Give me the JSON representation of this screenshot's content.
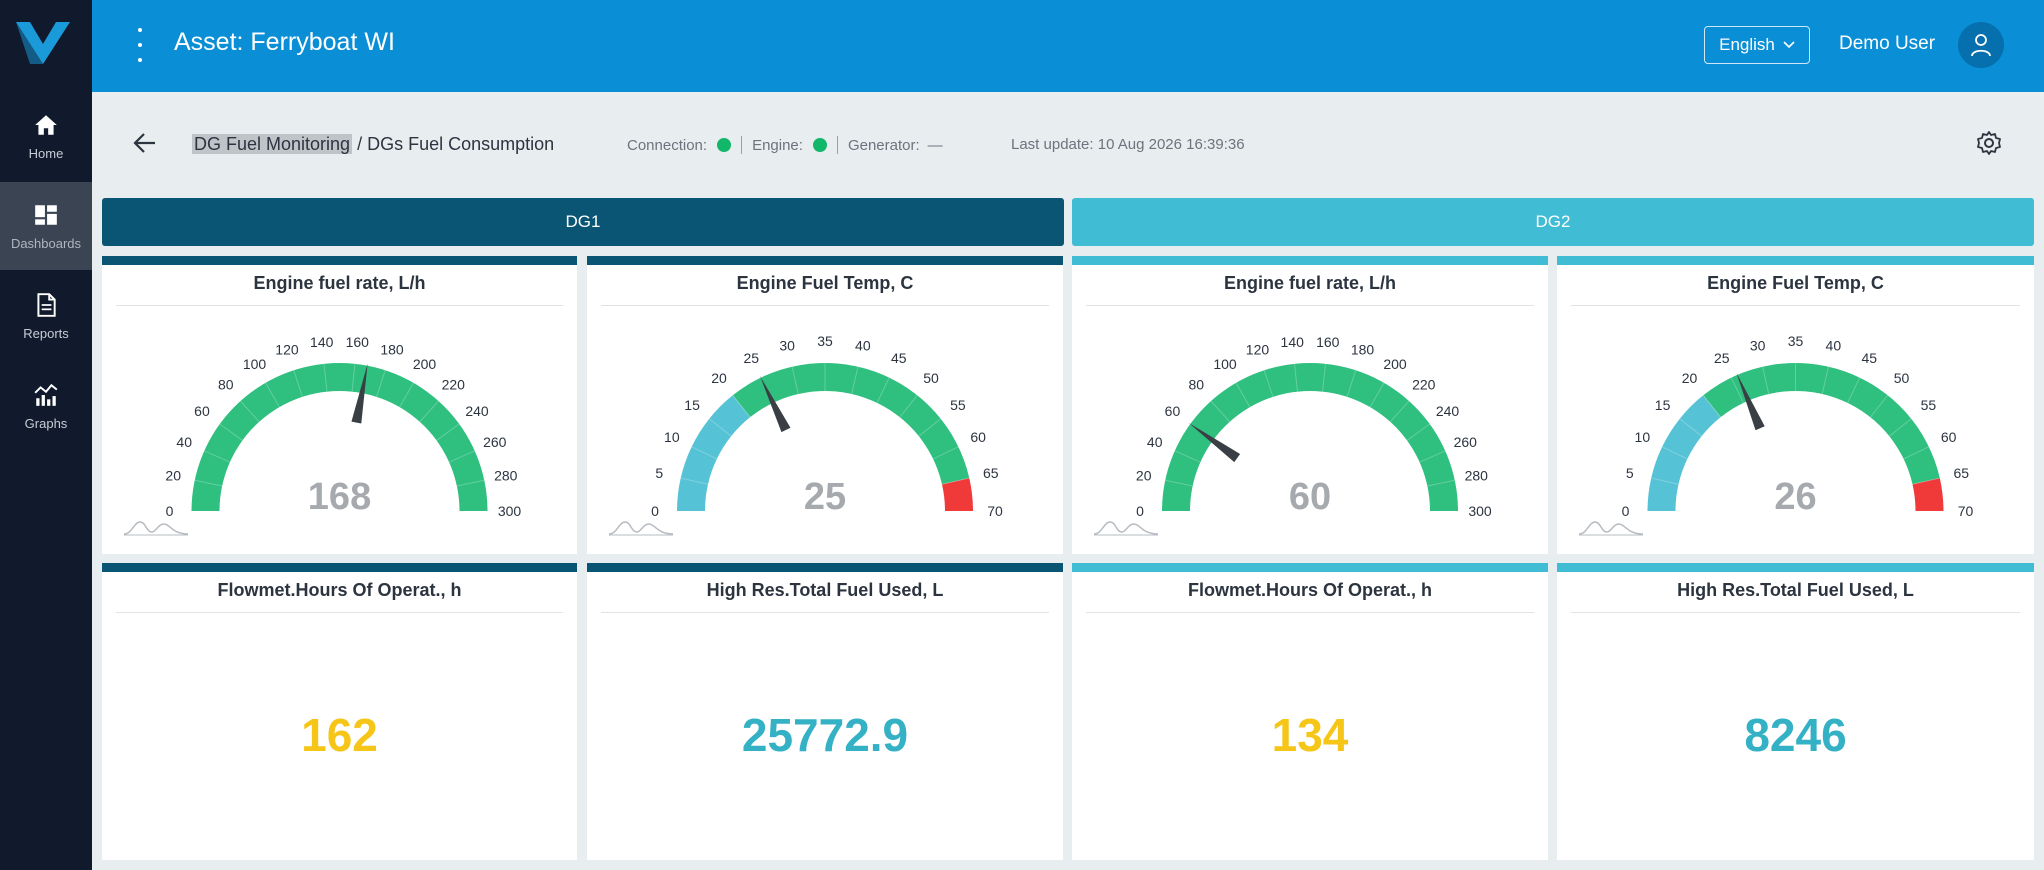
{
  "sidebar": {
    "items": [
      {
        "label": "Home",
        "icon": "home-icon"
      },
      {
        "label": "Dashboards",
        "icon": "dashboard-icon",
        "active": true
      },
      {
        "label": "Reports",
        "icon": "document-icon"
      },
      {
        "label": "Graphs",
        "icon": "graph-icon"
      }
    ]
  },
  "header": {
    "title": "Asset: Ferryboat WI",
    "language": "English",
    "user_name": "Demo User"
  },
  "breadcrumb": {
    "first": "DG Fuel Monitoring",
    "separator": " / ",
    "second": "DGs Fuel Consumption"
  },
  "status": {
    "connection_label": "Connection:",
    "engine_label": "Engine:",
    "generator_label": "Generator:",
    "generator_value": "—",
    "last_update": "Last update: 10 Aug 2026 16:39:36"
  },
  "tabs": [
    {
      "label": "DG1"
    },
    {
      "label": "DG2"
    }
  ],
  "gauges": [
    {
      "title": "Engine fuel rate, L/h",
      "value": 168,
      "display": "168",
      "min": 0,
      "max": 300,
      "step": 20,
      "color": "#0b5574",
      "ticks": [
        "0",
        "20",
        "40",
        "60",
        "80",
        "100",
        "120",
        "140",
        "160",
        "180",
        "200",
        "220",
        "240",
        "260",
        "280",
        "300"
      ]
    },
    {
      "title": "Engine Fuel Temp, C",
      "value": 25,
      "display": "25",
      "min": 0,
      "max": 70,
      "step": 5,
      "color": "#0b5574",
      "ticks": [
        "0",
        "5",
        "10",
        "15",
        "20",
        "25",
        "30",
        "35",
        "40",
        "45",
        "50",
        "55",
        "60",
        "65",
        "70"
      ]
    },
    {
      "title": "Engine fuel rate, L/h",
      "value": 60,
      "display": "60",
      "min": 0,
      "max": 300,
      "step": 20,
      "color": "#40bcd5",
      "ticks": [
        "0",
        "20",
        "40",
        "60",
        "80",
        "100",
        "120",
        "140",
        "160",
        "180",
        "200",
        "220",
        "240",
        "260",
        "280",
        "300"
      ]
    },
    {
      "title": "Engine Fuel Temp, C",
      "value": 26,
      "display": "26",
      "min": 0,
      "max": 70,
      "step": 5,
      "color": "#40bcd5",
      "ticks": [
        "0",
        "5",
        "10",
        "15",
        "20",
        "25",
        "30",
        "35",
        "40",
        "45",
        "50",
        "55",
        "60",
        "65",
        "70"
      ]
    }
  ],
  "counters": [
    {
      "title": "Flowmet.Hours Of Operat., h",
      "value": "162"
    },
    {
      "title": "High Res.Total Fuel Used, L",
      "value": "25772.9"
    },
    {
      "title": "Flowmet.Hours Of Operat., h",
      "value": "134"
    },
    {
      "title": "High Res.Total Fuel Used, L",
      "value": "8246"
    }
  ],
  "colors": {
    "gauge_green": "#2fbf7f",
    "gauge_cold": "#56c2d6",
    "gauge_hot": "#f03a3a",
    "needle": "#3a3f45",
    "value_yellow": "#f5c518",
    "value_teal": "#34b1c4"
  }
}
